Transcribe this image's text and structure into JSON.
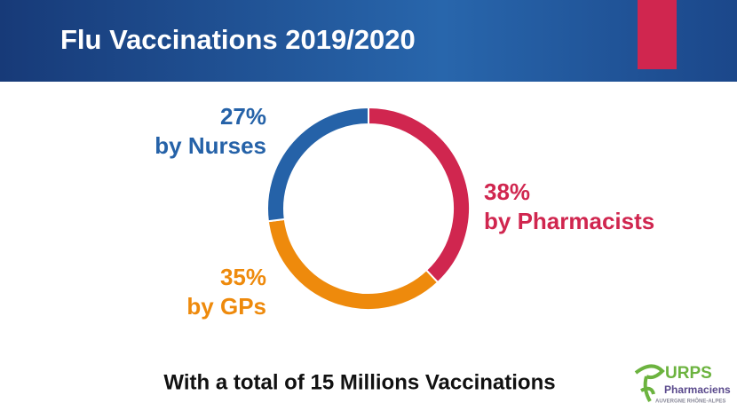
{
  "chart_data": {
    "type": "pie",
    "donut": true,
    "title": "Flu Vaccinations 2019/2020",
    "categories": [
      "by Pharmacists",
      "by GPs",
      "by Nurses"
    ],
    "values": [
      38,
      35,
      27
    ],
    "value_labels": [
      "38%",
      "35%",
      "27%"
    ],
    "colors": [
      "#d0264f",
      "#ee8a0c",
      "#2562a8"
    ],
    "annotation": "With a total of 15 Millions Vaccinations"
  },
  "logo": {
    "name": "URPS",
    "line1": "Pharmaciens",
    "line2": "AUVERGNE RHÔNE-ALPES"
  }
}
